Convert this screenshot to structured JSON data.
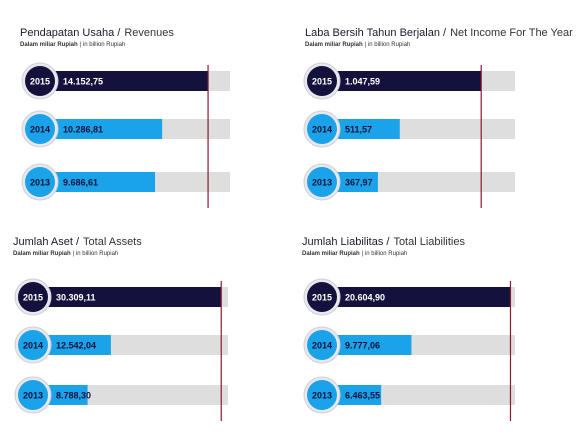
{
  "chart_data": [
    {
      "type": "hbar",
      "title": "Pendapatan Usaha /",
      "title_en": "Revenues",
      "subtitle": "Dalam miliar Rupiah",
      "subtitle_en": "| in billion Rupiah",
      "categories": [
        "2015",
        "2014",
        "2013"
      ],
      "values": [
        14152.75,
        10286.81,
        9686.61
      ],
      "value_labels": [
        "14.152,75",
        "10.286,81",
        "9.686,61"
      ],
      "colors": [
        "#14123d",
        "#1aa3e8",
        "#1aa3e8"
      ],
      "xlim": [
        0,
        16000
      ]
    },
    {
      "type": "hbar",
      "title": "Laba Bersih Tahun Berjalan /",
      "title_en": "Net Income For The Year",
      "subtitle": "Dalam miliar Rupiah",
      "subtitle_en": "| in billion Rupiah",
      "categories": [
        "2015",
        "2014",
        "2013"
      ],
      "values": [
        1047.59,
        511.57,
        367.97
      ],
      "value_labels": [
        "1.047,59",
        "511,57",
        "367,97"
      ],
      "colors": [
        "#14123d",
        "#1aa3e8",
        "#1aa3e8"
      ],
      "xlim": [
        0,
        1270
      ]
    },
    {
      "type": "hbar",
      "title": "Jumlah Aset /",
      "title_en": "Total Assets",
      "subtitle": "Dalam miliar Rupiah",
      "subtitle_en": "| in billion Rupiah",
      "categories": [
        "2015",
        "2014",
        "2013"
      ],
      "values": [
        30309.11,
        12542.04,
        8788.3
      ],
      "value_labels": [
        "30.309,11",
        "12.542,04",
        "8.788,30"
      ],
      "colors": [
        "#14123d",
        "#1aa3e8",
        "#1aa3e8"
      ],
      "xlim": [
        0,
        31400
      ]
    },
    {
      "type": "hbar",
      "title": "Jumlah Liabilitas /",
      "title_en": "Total Liabilities",
      "subtitle": "Dalam miliar Rupiah",
      "subtitle_en": "| in billion Rupiah",
      "categories": [
        "2015",
        "2014",
        "2013"
      ],
      "values": [
        20604.9,
        9777.06,
        6463.55
      ],
      "value_labels": [
        "20.604,90",
        "9.777,06",
        "6.463,55"
      ],
      "colors": [
        "#14123d",
        "#1aa3e8",
        "#1aa3e8"
      ],
      "xlim": [
        0,
        21100
      ]
    }
  ]
}
